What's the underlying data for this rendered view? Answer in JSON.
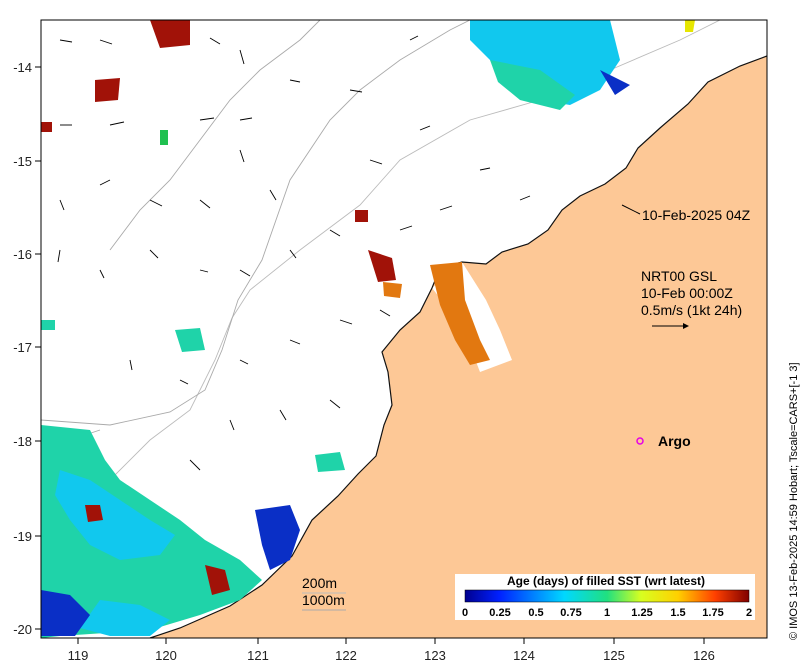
{
  "map": {
    "x_ticks": [
      "119",
      "120",
      "121",
      "122",
      "123",
      "124",
      "125",
      "126"
    ],
    "y_ticks": [
      "-14",
      "-15",
      "-16",
      "-17",
      "-18",
      "-19",
      "-20"
    ],
    "timestamp": "10-Feb-2025 04Z",
    "product": "NRT00 GSL",
    "product_time": "10-Feb 00:00Z",
    "vector_scale": "0.5m/s (1kt 24h)",
    "argo_label": "Argo",
    "contour_200": "200m",
    "contour_1000": "1000m",
    "credit": "© IMOS 13-Feb-2025 14:59 Hobart; Tscale=CARS+[-1 3]",
    "colorbar": {
      "title": "Age (days) of filled SST (wrt latest)",
      "labels": [
        "0",
        "0.25",
        "0.5",
        "0.75",
        "1",
        "1.25",
        "1.5",
        "1.75",
        "2"
      ]
    },
    "colors": {
      "land": "#fdc896",
      "argo": "#e600e6",
      "age_blue": "#0a2fc6",
      "age_cyan": "#11c8ee",
      "age_teal": "#1fd3a9",
      "age_orange": "#e27810",
      "age_red": "#a11208"
    }
  }
}
